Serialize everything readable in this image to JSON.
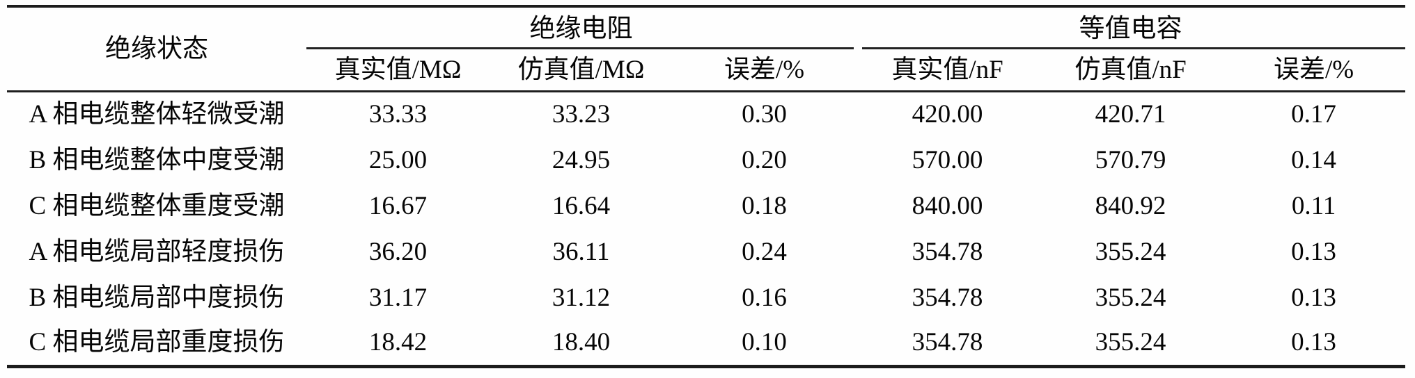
{
  "table": {
    "stub_header": "绝缘状态",
    "groups": [
      {
        "label": "绝缘电阻",
        "sub": [
          "真实值/MΩ",
          "仿真值/MΩ",
          "误差/%"
        ]
      },
      {
        "label": "等值电容",
        "sub": [
          "真实值/nF",
          "仿真值/nF",
          "误差/%"
        ]
      }
    ],
    "rows": [
      {
        "label": "A 相电缆整体轻微受潮",
        "v": [
          "33.33",
          "33.23",
          "0.30",
          "420.00",
          "420.71",
          "0.17"
        ]
      },
      {
        "label": "B 相电缆整体中度受潮",
        "v": [
          "25.00",
          "24.95",
          "0.20",
          "570.00",
          "570.79",
          "0.14"
        ]
      },
      {
        "label": "C 相电缆整体重度受潮",
        "v": [
          "16.67",
          "16.64",
          "0.18",
          "840.00",
          "840.92",
          "0.11"
        ]
      },
      {
        "label": "A 相电缆局部轻度损伤",
        "v": [
          "36.20",
          "36.11",
          "0.24",
          "354.78",
          "355.24",
          "0.13"
        ]
      },
      {
        "label": "B 相电缆局部中度损伤",
        "v": [
          "31.17",
          "31.12",
          "0.16",
          "354.78",
          "355.24",
          "0.13"
        ]
      },
      {
        "label": "C 相电缆局部重度损伤",
        "v": [
          "18.42",
          "18.40",
          "0.10",
          "354.78",
          "355.24",
          "0.13"
        ]
      }
    ],
    "colors": {
      "rule": "#1c1c1c",
      "text": "#060606",
      "background": "#fefefe"
    }
  },
  "chart_data": {
    "type": "table",
    "title": "",
    "columns": [
      "绝缘状态",
      "绝缘电阻 真实值/MΩ",
      "绝缘电阻 仿真值/MΩ",
      "绝缘电阻 误差/%",
      "等值电容 真实值/nF",
      "等值电容 仿真值/nF",
      "等值电容 误差/%"
    ],
    "rows": [
      [
        "A 相电缆整体轻微受潮",
        33.33,
        33.23,
        0.3,
        420.0,
        420.71,
        0.17
      ],
      [
        "B 相电缆整体中度受潮",
        25.0,
        24.95,
        0.2,
        570.0,
        570.79,
        0.14
      ],
      [
        "C 相电缆整体重度受潮",
        16.67,
        16.64,
        0.18,
        840.0,
        840.92,
        0.11
      ],
      [
        "A 相电缆局部轻度损伤",
        36.2,
        36.11,
        0.24,
        354.78,
        355.24,
        0.13
      ],
      [
        "B 相电缆局部中度损伤",
        31.17,
        31.12,
        0.16,
        354.78,
        355.24,
        0.13
      ],
      [
        "C 相电缆局部重度损伤",
        18.42,
        18.4,
        0.1,
        354.78,
        355.24,
        0.13
      ]
    ]
  }
}
